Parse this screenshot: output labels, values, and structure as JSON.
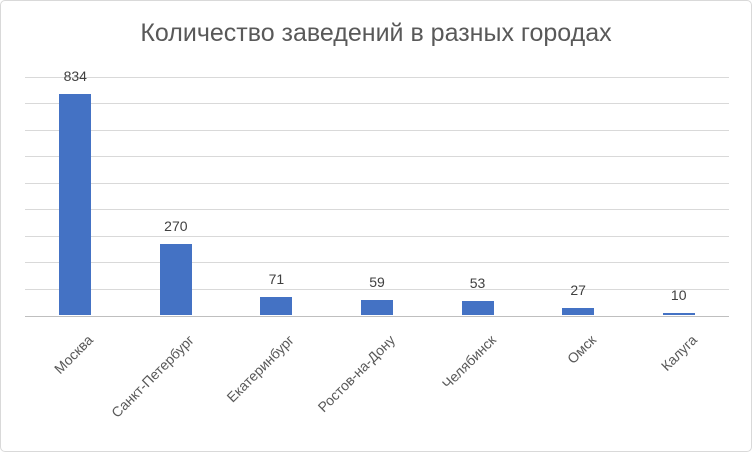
{
  "chart_data": {
    "type": "bar",
    "title": "Количество заведений в разных городах",
    "categories": [
      "Москва",
      "Санкт-Петербург",
      "Екатеринбург",
      "Ростов-на-Дону",
      "Челябинск",
      "Омск",
      "Калуга"
    ],
    "values": [
      834,
      270,
      71,
      59,
      53,
      27,
      10
    ],
    "data_labels": [
      "834",
      "270",
      "71",
      "59",
      "53",
      "27",
      "10"
    ],
    "xlabel": "",
    "ylabel": "",
    "ylim": [
      0,
      900
    ],
    "grid_step": 100,
    "grid": true,
    "legend_position": "none",
    "y_tick_labels_visible": false,
    "colors": {
      "bar": "#4472c4",
      "gridline": "#d9d9d9",
      "axis_line": "#bfbfbf",
      "title": "#595959",
      "data_label": "#404040",
      "category_label": "#595959",
      "background": "#ffffff",
      "border": "#d9d9d9"
    }
  }
}
